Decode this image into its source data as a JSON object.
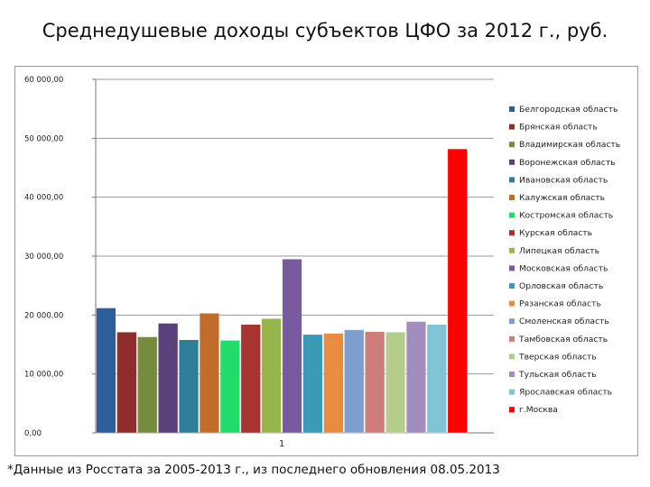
{
  "title": "Среднедушевые доходы субъектов ЦФО за 2012 г., руб.",
  "footnote": "*Данные из Росстата за 2005-2013 г., из последнего обновления 08.05.2013",
  "chart_data": {
    "type": "bar",
    "title": "Среднедушевые доходы субъектов ЦФО за 2012 г., руб.",
    "categories": [
      "1"
    ],
    "ylim": [
      0,
      60000
    ],
    "yticks": [
      0,
      10000,
      20000,
      30000,
      40000,
      50000,
      60000
    ],
    "ytick_labels": [
      "0,00",
      "10 000,00",
      "20 000,00",
      "30 000,00",
      "40 000,00",
      "50 000,00",
      "60 000,00"
    ],
    "grid": true,
    "legend": "right",
    "series": [
      {
        "name": "Белгородская область",
        "values": [
          21200
        ],
        "color": "#2e5e99"
      },
      {
        "name": "Брянская область",
        "values": [
          17100
        ],
        "color": "#8e2e2c"
      },
      {
        "name": "Владимирская область",
        "values": [
          16300
        ],
        "color": "#768b3b"
      },
      {
        "name": "Воронежская область",
        "values": [
          18600
        ],
        "color": "#5a4079"
      },
      {
        "name": "Ивановская область",
        "values": [
          15800
        ],
        "color": "#2b7f97"
      },
      {
        "name": "Калужская область",
        "values": [
          20300
        ],
        "color": "#c26c2a"
      },
      {
        "name": "Костромская область",
        "values": [
          15700
        ],
        "color": "#1fdc6b"
      },
      {
        "name": "Курская область",
        "values": [
          18400
        ],
        "color": "#a83432"
      },
      {
        "name": "Липецкая область",
        "values": [
          19400
        ],
        "color": "#97b54d"
      },
      {
        "name": "Московская область",
        "values": [
          29500
        ],
        "color": "#7a5a9e"
      },
      {
        "name": "Орловская область",
        "values": [
          16700
        ],
        "color": "#3b9ab5"
      },
      {
        "name": "Рязанская область",
        "values": [
          16900
        ],
        "color": "#e98c3f"
      },
      {
        "name": "Смоленская область",
        "values": [
          17500
        ],
        "color": "#7e9ed0"
      },
      {
        "name": "Тамбовская область",
        "values": [
          17200
        ],
        "color": "#cf7d7b"
      },
      {
        "name": "Тверская область",
        "values": [
          17100
        ],
        "color": "#b5cd8a"
      },
      {
        "name": "Тульская область",
        "values": [
          18900
        ],
        "color": "#a28dbf"
      },
      {
        "name": "Ярославская область",
        "values": [
          18400
        ],
        "color": "#7fc3d6"
      },
      {
        "name": "г.Москва",
        "values": [
          48200
        ],
        "color": "#ff0000"
      }
    ]
  }
}
